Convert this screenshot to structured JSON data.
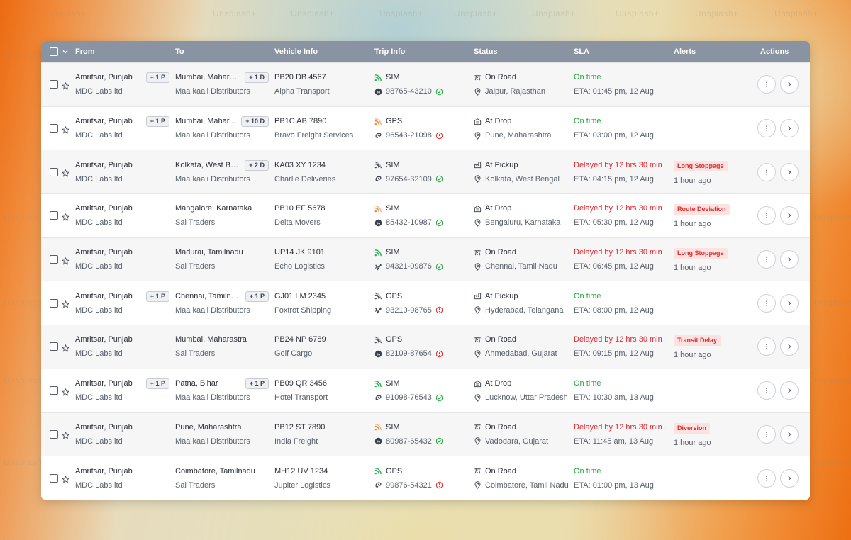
{
  "watermark": "Unsplash+",
  "columns": [
    "From",
    "To",
    "Vehicle Info",
    "Trip Info",
    "Status",
    "SLA",
    "Alerts",
    "Actions"
  ],
  "rows": [
    {
      "from_city": "Amritsar, Punjab",
      "from_tag": "+ 1 P",
      "from_company": "MDC Labs ltd",
      "to_city": "Mumbai, Maharashtra",
      "to_city_short": "Mumbai, Mahara...",
      "to_tag": "+ 1 D",
      "to_company": "Maa kaali Distributors",
      "vehicle": "PB20 DB 4567",
      "transporter": "Alpha Transport",
      "trip_type": "SIM",
      "trip_icon": "signal-icon",
      "phone": "98765-43210",
      "phone_state": "verified",
      "carrier": "jio",
      "status": "On Road",
      "status_icon": "road-icon",
      "location": "Jaipur, Rajasthan",
      "sla": "On time",
      "sla_state": "ok",
      "eta": "ETA: 01:45 pm, 12 Aug",
      "alert": "",
      "alert_time": ""
    },
    {
      "from_city": "Amritsar, Punjab",
      "from_tag": "+ 1 P",
      "from_company": "MDC Labs ltd",
      "to_city": "Mumbai, Maharashtra",
      "to_city_short": "Mumbai, Mahar...",
      "to_tag": "+ 10 D",
      "to_company": "Maa kaali Distributors",
      "vehicle": "PB1C AB 7890",
      "transporter": "Bravo Freight Services",
      "trip_type": "GPS",
      "trip_icon": "signal-weak-icon",
      "phone": "96543-21098",
      "phone_state": "error",
      "carrier": "airtel",
      "status": "At Drop",
      "status_icon": "warehouse-icon",
      "location": "Pune, Maharashtra",
      "sla": "On time",
      "sla_state": "ok",
      "eta": "ETA: 03:00 pm, 12 Aug",
      "alert": "",
      "alert_time": ""
    },
    {
      "from_city": "Amritsar, Punjab",
      "from_tag": "",
      "from_company": "MDC Labs ltd",
      "to_city": "Kolkata, West Bengal",
      "to_city_short": "Kolkata, West Be...",
      "to_tag": "+ 2 D",
      "to_company": "Maa kaali Distributors",
      "vehicle": "KA03 XY 1234",
      "transporter": "Charlie Deliveries",
      "trip_type": "SIM",
      "trip_icon": "signal-mid-icon",
      "phone": "97654-32109",
      "phone_state": "verified",
      "carrier": "airtel",
      "status": "At Pickup",
      "status_icon": "factory-icon",
      "location": "Kolkata, West Bengal",
      "sla": "Delayed by 12 hrs 30 min",
      "sla_state": "bad",
      "eta": "ETA: 04:15 pm, 12 Aug",
      "alert": "Long Stoppage",
      "alert_time": "1 hour ago"
    },
    {
      "from_city": "Amritsar, Punjab",
      "from_tag": "",
      "from_company": "MDC Labs ltd",
      "to_city": "Mangalore, Karnataka",
      "to_city_short": "Mangalore, Karnataka",
      "to_tag": "",
      "to_company": "Sai Traders",
      "vehicle": "PB10 EF 5678",
      "transporter": "Delta Movers",
      "trip_type": "SIM",
      "trip_icon": "signal-weak-icon",
      "phone": "85432-10987",
      "phone_state": "verified",
      "carrier": "jio",
      "status": "At Drop",
      "status_icon": "warehouse-icon",
      "location": "Bengaluru, Karnataka",
      "sla": "Delayed by 12 hrs 30 min",
      "sla_state": "bad",
      "eta": "ETA: 05:30 pm, 12 Aug",
      "alert": "Route Deviation",
      "alert_time": "1 hour ago"
    },
    {
      "from_city": "Amritsar, Punjab",
      "from_tag": "",
      "from_company": "MDC Labs ltd",
      "to_city": "Madurai, Tamilnadu",
      "to_city_short": "Madurai, Tamilnadu",
      "to_tag": "",
      "to_company": "Sai Traders",
      "vehicle": "UP14 JK 9101",
      "transporter": "Echo Logistics",
      "trip_type": "SIM",
      "trip_icon": "signal-icon",
      "phone": "94321-09876",
      "phone_state": "verified",
      "carrier": "vi",
      "status": "On Road",
      "status_icon": "road-icon",
      "location": "Chennai, Tamil Nadu",
      "sla": "Delayed by 12 hrs 30 min",
      "sla_state": "bad",
      "eta": "ETA: 06:45 pm, 12 Aug",
      "alert": "Long Stoppage",
      "alert_time": "1 hour ago"
    },
    {
      "from_city": "Amritsar, Punjab",
      "from_tag": "+ 1 P",
      "from_company": "MDC Labs ltd",
      "to_city": "Chennai, Tamilnadu",
      "to_city_short": "Chennai, Tamilna...",
      "to_tag": "+ 1 P",
      "to_company": "Maa kaali Distributors",
      "vehicle": "GJ01 LM 2345",
      "transporter": "Foxtrot Shipping",
      "trip_type": "GPS",
      "trip_icon": "signal-mid-icon",
      "phone": "93210-98765",
      "phone_state": "error",
      "carrier": "vi",
      "status": "At Pickup",
      "status_icon": "factory-icon",
      "location": "Hyderabad, Telangana",
      "sla": "On time",
      "sla_state": "ok",
      "eta": "ETA: 08:00 pm, 12 Aug",
      "alert": "",
      "alert_time": ""
    },
    {
      "from_city": "Amritsar, Punjab",
      "from_tag": "",
      "from_company": "MDC Labs ltd",
      "to_city": "Mumbai, Maharastra",
      "to_city_short": "Mumbai, Maharastra",
      "to_tag": "",
      "to_company": "Sai Traders",
      "vehicle": "PB24 NP 6789",
      "transporter": "Golf Cargo",
      "trip_type": "GPS",
      "trip_icon": "signal-mid-icon",
      "phone": "82109-87654",
      "phone_state": "error",
      "carrier": "jio",
      "status": "On Road",
      "status_icon": "road-icon",
      "location": "Ahmedabad, Gujarat",
      "sla": "Delayed by 12 hrs 30 min",
      "sla_state": "bad",
      "eta": "ETA: 09:15 pm, 12 Aug",
      "alert": "Transit Delay",
      "alert_time": "1 hour ago"
    },
    {
      "from_city": "Amritsar, Punjab",
      "from_tag": "+ 1 P",
      "from_company": "MDC Labs ltd",
      "to_city": "Patna, Bihar",
      "to_city_short": "Patna, Bihar",
      "to_tag": "+ 1 P",
      "to_company": "Maa kaali Distributors",
      "vehicle": "PB09 QR 3456",
      "transporter": "Hotel Transport",
      "trip_type": "SIM",
      "trip_icon": "signal-icon",
      "phone": "91098-76543",
      "phone_state": "verified",
      "carrier": "airtel",
      "status": "At Drop",
      "status_icon": "warehouse-icon",
      "location": "Lucknow, Uttar Pradesh",
      "sla": "On time",
      "sla_state": "ok",
      "eta": "ETA: 10:30 am, 13 Aug",
      "alert": "",
      "alert_time": ""
    },
    {
      "from_city": "Amritsar, Punjab",
      "from_tag": "",
      "from_company": "MDC Labs ltd",
      "to_city": "Pune, Maharashtra",
      "to_city_short": "Pune, Maharashtra",
      "to_tag": "",
      "to_company": "Maa kaali Distributors",
      "vehicle": "PB12 ST 7890",
      "transporter": "India Freight",
      "trip_type": "SIM",
      "trip_icon": "signal-weak-icon",
      "phone": "80987-65432",
      "phone_state": "verified",
      "carrier": "jio",
      "status": "On Road",
      "status_icon": "road-icon",
      "location": "Vadodara, Gujarat",
      "sla": "Delayed by 12 hrs 30 min",
      "sla_state": "bad",
      "eta": "ETA: 11:45 am, 13 Aug",
      "alert": "Diversion",
      "alert_time": "1 hour ago"
    },
    {
      "from_city": "Amritsar, Punjab",
      "from_tag": "",
      "from_company": "MDC Labs ltd",
      "to_city": "Coimbatore, Tamilnadu",
      "to_city_short": "Coimbatore, Tamilnadu",
      "to_tag": "",
      "to_company": "Sai Traders",
      "vehicle": "MH12 UV 1234",
      "transporter": "Jupiter Logistics",
      "trip_type": "GPS",
      "trip_icon": "signal-icon",
      "phone": "99876-54321",
      "phone_state": "error",
      "carrier": "airtel",
      "status": "On Road",
      "status_icon": "road-icon",
      "location": "Coimbatore, Tamil Nadu",
      "sla": "On time",
      "sla_state": "ok",
      "eta": "ETA: 01:00 pm, 13 Aug",
      "alert": "",
      "alert_time": ""
    }
  ],
  "colors": {
    "header_bg": "#8a93a2",
    "ok": "#1faa3a",
    "bad": "#e0282e",
    "signal_green": "#22b04a",
    "signal_orange": "#f07b22",
    "signal_red": "#e0282e"
  }
}
